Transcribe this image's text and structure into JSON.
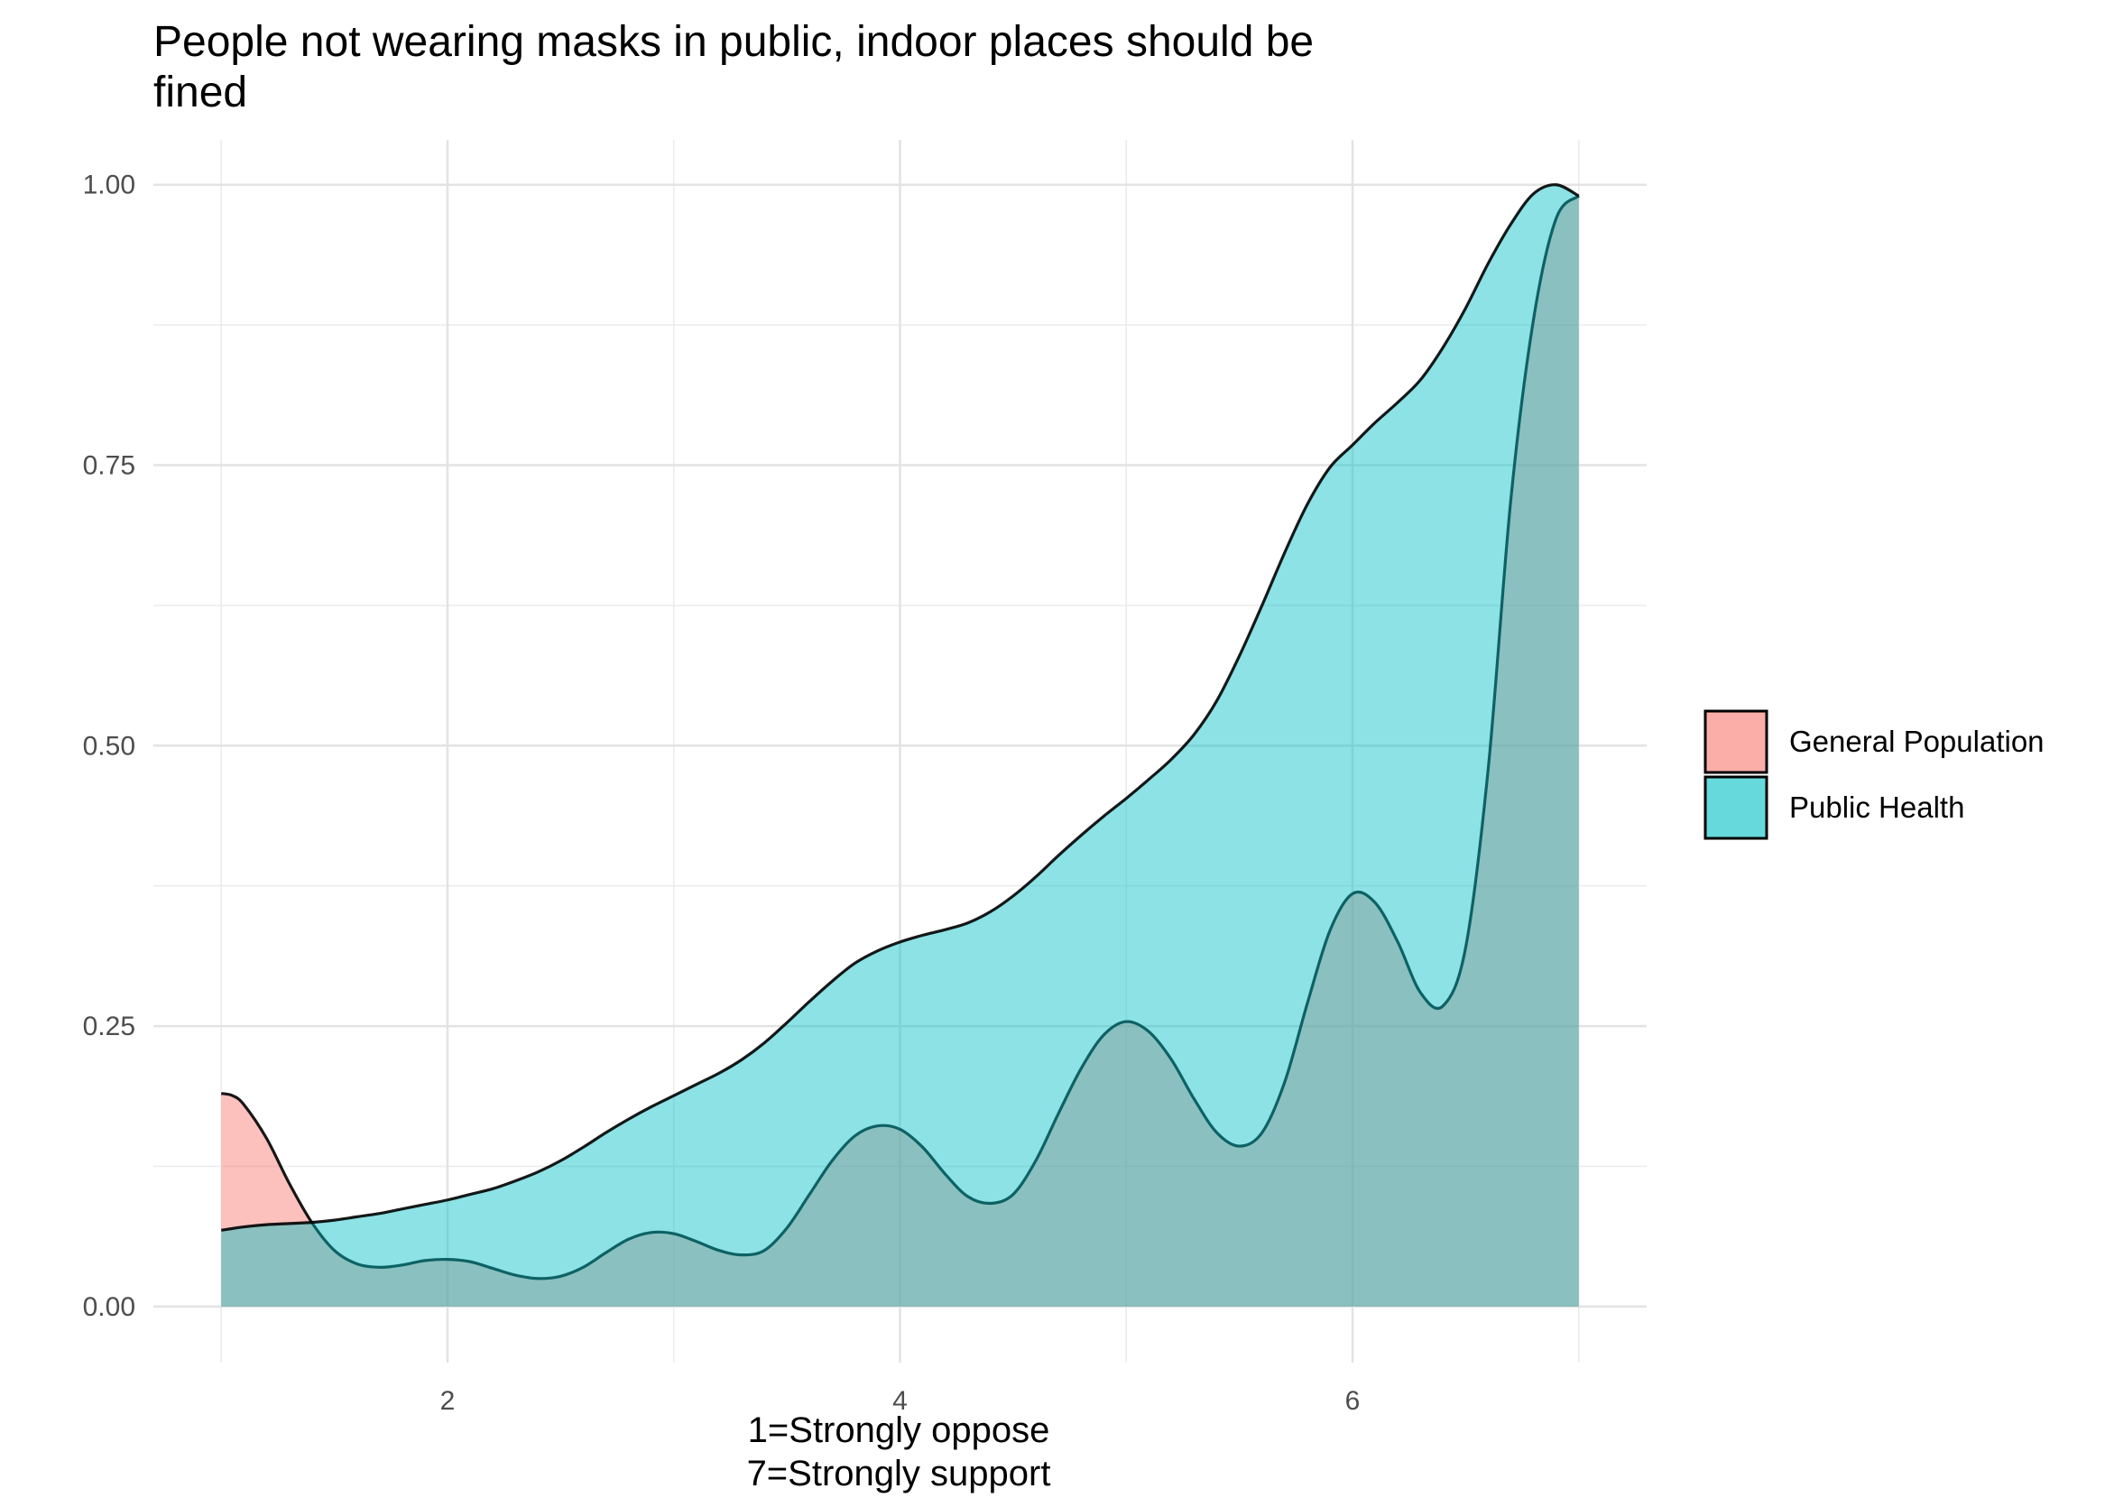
{
  "chart_data": {
    "type": "area",
    "title_line1": "People not wearing masks in public, indoor places should be",
    "title_line2": "fined",
    "xlabel_line1": "1=Strongly oppose",
    "xlabel_line2": "7=Strongly support",
    "ylabel": "",
    "xlim": [
      0.7,
      7.3
    ],
    "ylim": [
      -0.05,
      1.04
    ],
    "x_ticks": [
      2,
      4,
      6
    ],
    "x_tick_labels": [
      "2",
      "4",
      "6"
    ],
    "y_ticks": [
      0,
      0.25,
      0.5,
      0.75,
      1.0
    ],
    "y_tick_labels": [
      "0.00",
      "0.25",
      "0.50",
      "0.75",
      "1.00"
    ],
    "grid": true,
    "legend_position": "right",
    "series": [
      {
        "name": "General Population",
        "color": "#F8766D",
        "x": [
          1.0,
          1.05,
          1.1,
          1.2,
          1.3,
          1.4,
          1.5,
          1.6,
          1.7,
          1.8,
          1.9,
          2.0,
          2.1,
          2.2,
          2.3,
          2.4,
          2.5,
          2.6,
          2.7,
          2.8,
          2.9,
          3.0,
          3.1,
          3.2,
          3.3,
          3.4,
          3.5,
          3.6,
          3.7,
          3.8,
          3.9,
          4.0,
          4.1,
          4.2,
          4.3,
          4.4,
          4.5,
          4.6,
          4.7,
          4.8,
          4.9,
          5.0,
          5.1,
          5.2,
          5.3,
          5.4,
          5.5,
          5.6,
          5.7,
          5.8,
          5.9,
          6.0,
          6.1,
          6.2,
          6.3,
          6.4,
          6.5,
          6.6,
          6.7,
          6.8,
          6.9,
          7.0
        ],
        "y": [
          0.19,
          0.188,
          0.18,
          0.15,
          0.11,
          0.075,
          0.05,
          0.038,
          0.035,
          0.037,
          0.041,
          0.042,
          0.04,
          0.034,
          0.028,
          0.025,
          0.027,
          0.035,
          0.048,
          0.06,
          0.066,
          0.065,
          0.058,
          0.05,
          0.046,
          0.05,
          0.07,
          0.1,
          0.13,
          0.152,
          0.161,
          0.158,
          0.142,
          0.118,
          0.098,
          0.092,
          0.1,
          0.13,
          0.172,
          0.212,
          0.242,
          0.254,
          0.245,
          0.22,
          0.185,
          0.155,
          0.143,
          0.155,
          0.2,
          0.27,
          0.335,
          0.368,
          0.36,
          0.325,
          0.28,
          0.268,
          0.32,
          0.48,
          0.72,
          0.88,
          0.97,
          0.99
        ]
      },
      {
        "name": "Public Health",
        "color": "#00BFC4",
        "x": [
          1.0,
          1.1,
          1.2,
          1.3,
          1.4,
          1.5,
          1.6,
          1.7,
          1.8,
          1.9,
          2.0,
          2.1,
          2.2,
          2.3,
          2.4,
          2.5,
          2.6,
          2.7,
          2.8,
          2.9,
          3.0,
          3.1,
          3.2,
          3.3,
          3.4,
          3.5,
          3.6,
          3.7,
          3.8,
          3.9,
          4.0,
          4.1,
          4.2,
          4.3,
          4.4,
          4.5,
          4.6,
          4.7,
          4.8,
          4.9,
          5.0,
          5.1,
          5.2,
          5.3,
          5.4,
          5.5,
          5.6,
          5.7,
          5.8,
          5.9,
          6.0,
          6.1,
          6.2,
          6.3,
          6.4,
          6.5,
          6.6,
          6.7,
          6.8,
          6.9,
          7.0
        ],
        "y": [
          0.068,
          0.071,
          0.073,
          0.074,
          0.075,
          0.077,
          0.08,
          0.083,
          0.087,
          0.091,
          0.095,
          0.1,
          0.105,
          0.112,
          0.12,
          0.13,
          0.142,
          0.155,
          0.167,
          0.178,
          0.188,
          0.198,
          0.208,
          0.22,
          0.235,
          0.253,
          0.272,
          0.29,
          0.306,
          0.317,
          0.325,
          0.331,
          0.336,
          0.342,
          0.352,
          0.366,
          0.383,
          0.402,
          0.42,
          0.437,
          0.453,
          0.47,
          0.488,
          0.51,
          0.54,
          0.58,
          0.625,
          0.672,
          0.715,
          0.748,
          0.768,
          0.788,
          0.806,
          0.826,
          0.855,
          0.89,
          0.93,
          0.965,
          0.992,
          1.0,
          0.99
        ]
      }
    ]
  }
}
